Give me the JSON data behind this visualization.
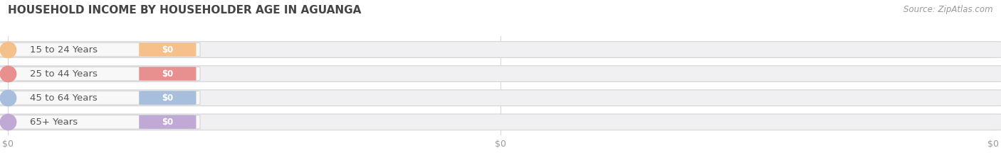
{
  "title": "HOUSEHOLD INCOME BY HOUSEHOLDER AGE IN AGUANGA",
  "source": "Source: ZipAtlas.com",
  "categories": [
    "15 to 24 Years",
    "25 to 44 Years",
    "45 to 64 Years",
    "65+ Years"
  ],
  "values": [
    0,
    0,
    0,
    0
  ],
  "bar_colors": [
    "#f5c08a",
    "#e89090",
    "#a8bedd",
    "#c0aad5"
  ],
  "title_fontsize": 11,
  "source_fontsize": 8.5,
  "tick_fontsize": 9,
  "value_label_fontsize": 8.5,
  "category_fontsize": 9.5,
  "background_color": "#ffffff",
  "grid_color": "#d8d8d8",
  "bar_bg_color": "#f0f0f2",
  "bar_bg_edge_color": "#d5d5d8",
  "label_area_color": "#f8f8f8",
  "label_area_edge_color": "#cccccc",
  "xlim_max": 1.0,
  "xtick_positions": [
    0.0,
    0.5,
    1.0
  ],
  "xtick_labels": [
    "$0",
    "$0",
    "$0"
  ]
}
